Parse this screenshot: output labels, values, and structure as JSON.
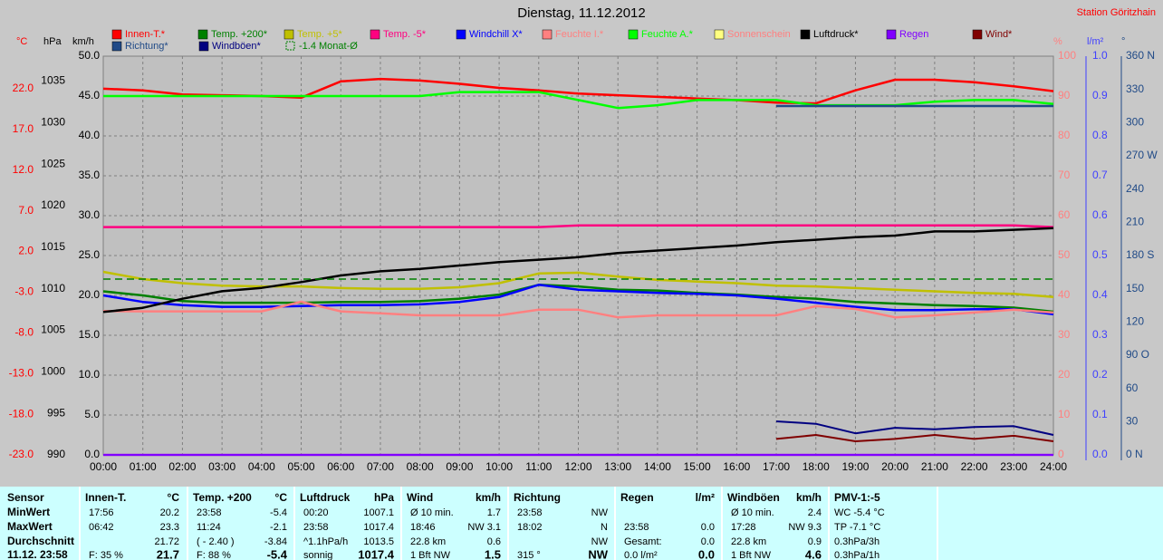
{
  "chart_data": {
    "type": "line",
    "title": "Dienstag, 11.12.2012",
    "station": "Station Göritzhain",
    "x": [
      0,
      1,
      2,
      3,
      4,
      5,
      6,
      7,
      8,
      9,
      10,
      11,
      12,
      13,
      14,
      15,
      16,
      17,
      18,
      19,
      20,
      21,
      22,
      23,
      24
    ],
    "xlim": [
      0,
      24
    ],
    "xticks": [
      {
        "value": 0,
        "label": "00:00"
      },
      {
        "value": 1,
        "label": "01:00"
      },
      {
        "value": 2,
        "label": "02:00"
      },
      {
        "value": 3,
        "label": "03:00"
      },
      {
        "value": 4,
        "label": "04:00"
      },
      {
        "value": 5,
        "label": "05:00"
      },
      {
        "value": 6,
        "label": "06:00"
      },
      {
        "value": 7,
        "label": "07:00"
      },
      {
        "value": 8,
        "label": "08:00"
      },
      {
        "value": 9,
        "label": "09:00"
      },
      {
        "value": 10,
        "label": "10:00"
      },
      {
        "value": 11,
        "label": "11:00"
      },
      {
        "value": 12,
        "label": "12:00"
      },
      {
        "value": 13,
        "label": "13:00"
      },
      {
        "value": 14,
        "label": "14:00"
      },
      {
        "value": 15,
        "label": "15:00"
      },
      {
        "value": 16,
        "label": "16:00"
      },
      {
        "value": 17,
        "label": "17:00"
      },
      {
        "value": 18,
        "label": "18:00"
      },
      {
        "value": 19,
        "label": "19:00"
      },
      {
        "value": 20,
        "label": "20:00"
      },
      {
        "value": 21,
        "label": "21:00"
      },
      {
        "value": 22,
        "label": "22:00"
      },
      {
        "value": 23,
        "label": "23:00"
      },
      {
        "value": 24,
        "label": "24:00"
      }
    ],
    "axes": [
      {
        "label": "°C",
        "color": "#ff0000",
        "lim": [
          -23,
          26
        ],
        "ticks": [
          {
            "value": 22,
            "label": "22.0"
          },
          {
            "value": 17,
            "label": "17.0"
          },
          {
            "value": 12,
            "label": "12.0"
          },
          {
            "value": 7,
            "label": "7.0"
          },
          {
            "value": 2,
            "label": "2.0"
          },
          {
            "value": -3,
            "label": "-3.0"
          },
          {
            "value": -8,
            "label": "-8.0"
          },
          {
            "value": -13,
            "label": "-13.0"
          },
          {
            "value": -18,
            "label": "-18.0"
          },
          {
            "value": -23,
            "label": "-23.0"
          }
        ]
      },
      {
        "label": "hPa",
        "color": "#000000",
        "lim": [
          990,
          1038
        ],
        "ticks": [
          1035,
          1030,
          1025,
          1020,
          1015,
          1010,
          1005,
          1000,
          995,
          990
        ]
      },
      {
        "label": "km/h",
        "color": "#000000",
        "lim": [
          0,
          50
        ],
        "grid": true,
        "ticks": [
          {
            "value": 50,
            "label": "50.0"
          },
          {
            "value": 45,
            "label": "45.0"
          },
          {
            "value": 40,
            "label": "40.0"
          },
          {
            "value": 35,
            "label": "35.0"
          },
          {
            "value": 30,
            "label": "30.0"
          },
          {
            "value": 25,
            "label": "25.0"
          },
          {
            "value": 20,
            "label": "20.0"
          },
          {
            "value": 15,
            "label": "15.0"
          },
          {
            "value": 10,
            "label": "10.0"
          },
          {
            "value": 5,
            "label": "5.0"
          },
          {
            "value": 0,
            "label": "0.0"
          }
        ]
      },
      {
        "label": "%",
        "color": "#ff8080",
        "lim": [
          0,
          100
        ],
        "ticks": [
          100,
          90,
          80,
          70,
          60,
          50,
          40,
          30,
          20,
          10,
          0
        ]
      },
      {
        "label": "l/m²",
        "color": "#4040ff",
        "lim": [
          0,
          1
        ],
        "ticks": [
          {
            "value": 1,
            "label": "1.0"
          },
          {
            "value": 0.9,
            "label": "0.9"
          },
          {
            "value": 0.8,
            "label": "0.8"
          },
          {
            "value": 0.7,
            "label": "0.7"
          },
          {
            "value": 0.6,
            "label": "0.6"
          },
          {
            "value": 0.5,
            "label": "0.5"
          },
          {
            "value": 0.4,
            "label": "0.4"
          },
          {
            "value": 0.3,
            "label": "0.3"
          },
          {
            "value": 0.2,
            "label": "0.2"
          },
          {
            "value": 0.1,
            "label": "0.1"
          },
          {
            "value": 0,
            "label": "0.0"
          }
        ]
      },
      {
        "label": "°",
        "color": "#204a87",
        "lim": [
          0,
          360
        ],
        "ticks": [
          {
            "value": 360,
            "label": "360 N"
          },
          330,
          300,
          {
            "value": 270,
            "label": "270 W"
          },
          240,
          210,
          {
            "value": 180,
            "label": "180 S"
          },
          150,
          120,
          {
            "value": 90,
            "label": "90 O"
          },
          60,
          30,
          {
            "value": 0,
            "label": "0 N"
          }
        ]
      }
    ],
    "series": [
      {
        "name": "Innen-T.*",
        "color": "#ff0000",
        "axis": 0,
        "values": [
          22.0,
          21.8,
          21.3,
          21.2,
          21.1,
          20.9,
          22.9,
          23.2,
          23.0,
          22.6,
          22.1,
          21.8,
          21.4,
          21.2,
          21.0,
          20.8,
          20.6,
          20.3,
          20.2,
          21.8,
          23.1,
          23.1,
          22.8,
          22.3,
          21.7
        ]
      },
      {
        "name": "Temp. +200*",
        "color": "#008000",
        "axis": 0,
        "values": [
          -2.9,
          -3.4,
          -4.1,
          -4.3,
          -4.3,
          -4.3,
          -4.2,
          -4.2,
          -4.1,
          -3.8,
          -3.3,
          -2.1,
          -2.3,
          -2.7,
          -2.8,
          -3.1,
          -3.3,
          -3.6,
          -3.8,
          -4.2,
          -4.4,
          -4.6,
          -4.7,
          -4.9,
          -5.4
        ]
      },
      {
        "name": "Temp. +5*",
        "color": "#c0c000",
        "axis": 0,
        "values": [
          -0.5,
          -1.4,
          -1.9,
          -2.2,
          -2.3,
          -2.3,
          -2.5,
          -2.6,
          -2.6,
          -2.4,
          -1.9,
          -0.7,
          -0.6,
          -1.1,
          -1.5,
          -1.7,
          -1.9,
          -2.2,
          -2.3,
          -2.5,
          -2.7,
          -2.9,
          -3.1,
          -3.2,
          -3.6
        ]
      },
      {
        "name": "Temp. -5*",
        "color": "#ff0080",
        "axis": 0,
        "values": [
          5.0,
          5.0,
          5.0,
          5.0,
          5.0,
          5.0,
          5.0,
          5.0,
          5.0,
          5.0,
          5.0,
          5.0,
          5.2,
          5.2,
          5.2,
          5.2,
          5.2,
          5.2,
          5.2,
          5.2,
          5.2,
          5.2,
          5.2,
          5.2,
          5.0
        ]
      },
      {
        "name": "Windchill X*",
        "color": "#0000ff",
        "axis": 0,
        "values": [
          -3.4,
          -4.2,
          -4.6,
          -4.8,
          -4.8,
          -4.7,
          -4.6,
          -4.6,
          -4.5,
          -4.2,
          -3.6,
          -2.1,
          -2.7,
          -2.9,
          -3.1,
          -3.2,
          -3.4,
          -3.8,
          -4.3,
          -4.8,
          -5.2,
          -5.2,
          -5.1,
          -5.1,
          -5.7
        ]
      },
      {
        "name": "Feuchte I.*",
        "color": "#ff8080",
        "axis": 3,
        "values": [
          36.1,
          36.0,
          36.0,
          36.0,
          36.0,
          38.4,
          36.0,
          35.5,
          35.0,
          35.0,
          35.0,
          36.4,
          36.4,
          34.5,
          35.0,
          35.0,
          35.0,
          35.0,
          37.3,
          36.6,
          34.5,
          35.0,
          35.7,
          36.4,
          35.7
        ]
      },
      {
        "name": "Feuchte A.*",
        "color": "#00ff00",
        "axis": 3,
        "values": [
          90,
          90,
          90,
          90,
          90,
          90,
          90,
          90,
          90,
          91,
          91,
          91,
          89,
          87,
          87.7,
          89,
          89,
          89,
          87.7,
          87.7,
          87.7,
          88.6,
          89,
          89,
          88
        ]
      },
      {
        "name": "Sonnenschein",
        "color": "#ffff80",
        "axis": 3,
        "values": [
          0,
          0,
          0,
          0,
          0,
          0,
          0,
          0,
          0,
          0,
          0,
          0,
          0,
          0,
          0,
          0,
          0,
          0,
          0,
          0,
          0,
          0,
          0,
          0,
          0
        ]
      },
      {
        "name": "Luftdruck*",
        "color": "#000000",
        "axis": 1,
        "values": [
          1007.2,
          1007.7,
          1008.8,
          1009.7,
          1010.1,
          1010.8,
          1011.6,
          1012.1,
          1012.4,
          1012.8,
          1013.2,
          1013.5,
          1013.8,
          1014.3,
          1014.6,
          1014.9,
          1015.2,
          1015.6,
          1015.9,
          1016.2,
          1016.4,
          1016.9,
          1016.9,
          1017.1,
          1017.3
        ]
      },
      {
        "name": "Regen",
        "color": "#8000ff",
        "axis": 4,
        "values": [
          0,
          0,
          0,
          0,
          0,
          0,
          0,
          0,
          0,
          0,
          0,
          0,
          0,
          0,
          0,
          0,
          0,
          0,
          0,
          0,
          0,
          0,
          0,
          0,
          0
        ]
      },
      {
        "name": "Wind*",
        "color": "#800000",
        "axis": 2,
        "values": [
          null,
          null,
          null,
          null,
          null,
          null,
          null,
          null,
          null,
          null,
          null,
          null,
          null,
          null,
          null,
          null,
          null,
          2.0,
          2.5,
          1.7,
          2.0,
          2.5,
          2.0,
          2.4,
          1.7
        ]
      },
      {
        "name": "Richtung*",
        "color": "#204a87",
        "axis": 5,
        "values": [
          null,
          null,
          null,
          null,
          null,
          null,
          null,
          null,
          null,
          null,
          null,
          null,
          null,
          null,
          null,
          null,
          null,
          315,
          315,
          315,
          315,
          315,
          315,
          315,
          315
        ]
      },
      {
        "name": "Windböen*",
        "color": "#000080",
        "axis": 2,
        "values": [
          null,
          null,
          null,
          null,
          null,
          null,
          null,
          null,
          null,
          null,
          null,
          null,
          null,
          null,
          null,
          null,
          null,
          4.2,
          3.9,
          2.7,
          3.4,
          3.2,
          3.5,
          3.6,
          2.5
        ]
      },
      {
        "name": "-1.4 Monat-Ø",
        "color": "#008000",
        "axis": 0,
        "level": -1.4,
        "dashed": true
      }
    ]
  },
  "table": {
    "row_labels": [
      "Sensor",
      "MinWert",
      "MaxWert",
      "Durchschnitt",
      "11.12. 23:58"
    ],
    "blocks": [
      {
        "name": "Innen-T.",
        "unit": "°C",
        "rows": [
          [
            "17:56",
            "20.2"
          ],
          [
            "06:42",
            "23.3"
          ],
          [
            null,
            "21.72"
          ],
          [
            "F: 35 %",
            "21.7"
          ]
        ]
      },
      {
        "name": "Temp. +200",
        "unit": "°C",
        "rows": [
          [
            "23:58",
            "-5.4"
          ],
          [
            "11:24",
            "-2.1"
          ],
          [
            "( - 2.40 )",
            "-3.84"
          ],
          [
            "F: 88 %",
            "-5.4"
          ]
        ]
      },
      {
        "name": "Luftdruck",
        "unit": "hPa",
        "rows": [
          [
            "00:20",
            "1007.1"
          ],
          [
            "23:58",
            "1017.4"
          ],
          [
            "^1.1hPa/h",
            "1013.5"
          ],
          [
            "sonnig",
            "1017.4"
          ]
        ]
      },
      {
        "name": "Wind",
        "unit": "km/h",
        "rows": [
          [
            "Ø 10 min.",
            "1.7"
          ],
          [
            "18:46",
            "NW 3.1"
          ],
          [
            "22.8 km",
            "0.6"
          ],
          [
            "1 Bft NW",
            "1.5"
          ]
        ]
      },
      {
        "name": "Richtung",
        "rows": [
          [
            "23:58",
            "NW"
          ],
          [
            "18:02",
            "N"
          ],
          [
            null,
            "NW"
          ],
          [
            "315 °",
            "NW"
          ]
        ]
      },
      {
        "name": "Regen",
        "unit": "l/m²",
        "rows": [
          [
            null,
            null
          ],
          [
            "23:58",
            "0.0"
          ],
          [
            "Gesamt:",
            "0.0"
          ],
          [
            "0.0 l/m²",
            "0.0"
          ]
        ]
      },
      {
        "name": "Windböen",
        "unit": "km/h",
        "rows": [
          [
            "Ø 10 min.",
            "2.4"
          ],
          [
            "17:28",
            "NW 9.3"
          ],
          [
            "22.8 km",
            "0.9"
          ],
          [
            "1 Bft NW",
            "4.6"
          ]
        ]
      },
      {
        "name": "PMV-1:-5",
        "rows": [
          [
            "WC -5.4 °C"
          ],
          [
            "TP -7.1 °C"
          ],
          [
            "0.3hPa/3h"
          ],
          [
            "0.3hPa/1h"
          ]
        ]
      }
    ]
  }
}
